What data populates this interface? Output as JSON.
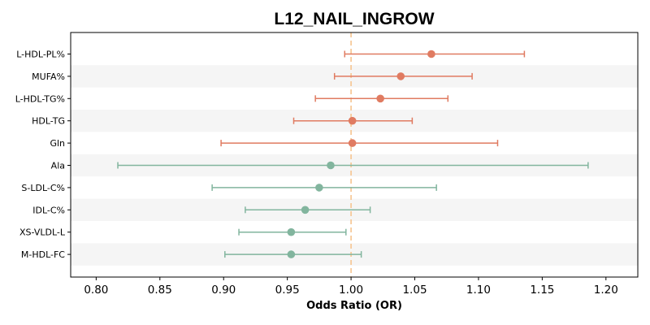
{
  "chart_data": {
    "type": "forest",
    "title": "L12_NAIL_INGROW",
    "xlabel": "Odds Ratio (OR)",
    "xlim": [
      0.78,
      1.225
    ],
    "xticks": [
      "0.80",
      "0.85",
      "0.90",
      "0.95",
      "1.00",
      "1.05",
      "1.10",
      "1.15",
      "1.20"
    ],
    "reference_line": 1.0,
    "grid": false,
    "band_color": "#f5f5f5",
    "reference_color": "#f6c48f",
    "colors": {
      "positive": "#e07b61",
      "negative": "#82b59e"
    },
    "rows": [
      {
        "label": "L-HDL-PL%",
        "or": 1.063,
        "lower": 0.995,
        "upper": 1.136
      },
      {
        "label": "MUFA%",
        "or": 1.039,
        "lower": 0.987,
        "upper": 1.095
      },
      {
        "label": "L-HDL-TG%",
        "or": 1.023,
        "lower": 0.972,
        "upper": 1.076
      },
      {
        "label": "HDL-TG",
        "or": 1.001,
        "lower": 0.955,
        "upper": 1.048
      },
      {
        "label": "Gln",
        "or": 1.001,
        "lower": 0.898,
        "upper": 1.115
      },
      {
        "label": "Ala",
        "or": 0.984,
        "lower": 0.817,
        "upper": 1.186
      },
      {
        "label": "S-LDL-C%",
        "or": 0.975,
        "lower": 0.891,
        "upper": 1.067
      },
      {
        "label": "IDL-C%",
        "or": 0.964,
        "lower": 0.917,
        "upper": 1.015
      },
      {
        "label": "XS-VLDL-L",
        "or": 0.953,
        "lower": 0.912,
        "upper": 0.996
      },
      {
        "label": "M-HDL-FC",
        "or": 0.953,
        "lower": 0.901,
        "upper": 1.008
      }
    ]
  }
}
